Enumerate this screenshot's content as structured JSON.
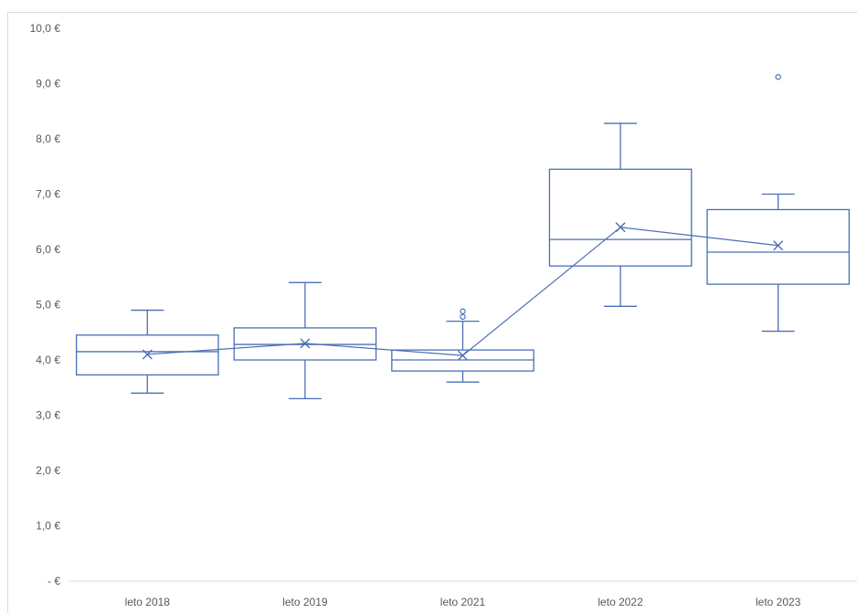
{
  "chart_data": {
    "type": "boxplot",
    "title": "",
    "xlabel": "",
    "ylabel": "",
    "ylim": [
      0,
      10
    ],
    "y_ticks": [
      {
        "value": 10,
        "label": "10,0 €"
      },
      {
        "value": 9,
        "label": "9,0 €"
      },
      {
        "value": 8,
        "label": "8,0 €"
      },
      {
        "value": 7,
        "label": "7,0 €"
      },
      {
        "value": 6,
        "label": "6,0 €"
      },
      {
        "value": 5,
        "label": "5,0 €"
      },
      {
        "value": 4,
        "label": "4,0 €"
      },
      {
        "value": 3,
        "label": "3,0 €"
      },
      {
        "value": 2,
        "label": "2,0 €"
      },
      {
        "value": 1,
        "label": "1,0 €"
      },
      {
        "value": 0,
        "label": "-   €"
      }
    ],
    "categories": [
      "leto 2018",
      "leto 2019",
      "leto 2021",
      "leto 2022",
      "leto 2023"
    ],
    "boxes": [
      {
        "category": "leto 2018",
        "whisker_low": 3.4,
        "q1": 3.73,
        "median": 4.15,
        "q3": 4.45,
        "whisker_high": 4.9,
        "mean": 4.1,
        "outliers": []
      },
      {
        "category": "leto 2019",
        "whisker_low": 3.3,
        "q1": 4.0,
        "median": 4.28,
        "q3": 4.58,
        "whisker_high": 5.4,
        "mean": 4.3,
        "outliers": []
      },
      {
        "category": "leto 2021",
        "whisker_low": 3.6,
        "q1": 3.8,
        "median": 4.0,
        "q3": 4.18,
        "whisker_high": 4.7,
        "mean": 4.08,
        "outliers": [
          4.78,
          4.88
        ]
      },
      {
        "category": "leto 2022",
        "whisker_low": 4.97,
        "q1": 5.7,
        "median": 6.18,
        "q3": 7.45,
        "whisker_high": 8.28,
        "mean": 6.4,
        "outliers": []
      },
      {
        "category": "leto 2023",
        "whisker_low": 4.52,
        "q1": 5.37,
        "median": 5.95,
        "q3": 6.72,
        "whisker_high": 7.0,
        "mean": 6.07,
        "outliers": [
          9.12
        ]
      }
    ],
    "mean_line": true,
    "grid": false,
    "legend": "none",
    "colors": {
      "series": "#4a6fb5",
      "axis": "#d9d9d9",
      "tick_text": "#595959"
    }
  }
}
